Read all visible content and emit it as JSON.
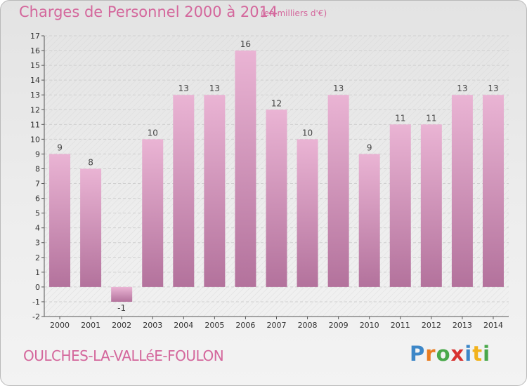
{
  "header": {
    "title": "Charges de Personnel 2000 à 2014",
    "unit": "(en milliers d'€)"
  },
  "footer": {
    "commune": "OULCHES-LA-VALLéE-FOULON",
    "logo_letters": [
      "P",
      "r",
      "o",
      "x",
      "i",
      "t",
      "i"
    ],
    "logo_colors": [
      "#3d87c8",
      "#e97c20",
      "#49a84a",
      "#d8312f",
      "#3d87c8",
      "#f2b21c",
      "#49a84a"
    ]
  },
  "colors": {
    "bar_top": "#eab4d4",
    "bar_bottom": "#b3729c",
    "accent": "#d4679c"
  },
  "chart_data": {
    "type": "bar",
    "title": "Charges de Personnel 2000 à 2014",
    "subtitle": "(en milliers d'€)",
    "xlabel": "",
    "ylabel": "",
    "categories": [
      "2000",
      "2001",
      "2002",
      "2003",
      "2004",
      "2005",
      "2006",
      "2007",
      "2008",
      "2009",
      "2010",
      "2011",
      "2012",
      "2013",
      "2014"
    ],
    "values": [
      9,
      8,
      -1,
      10,
      13,
      13,
      16,
      12,
      10,
      13,
      9,
      11,
      11,
      13,
      13
    ],
    "ylim": [
      -2,
      17
    ],
    "yticks": [
      "-2",
      "-1",
      "0",
      "1",
      "2",
      "3",
      "4",
      "5",
      "6",
      "7",
      "8",
      "9",
      "10",
      "11",
      "12",
      "13",
      "14",
      "15",
      "16",
      "17"
    ],
    "grid": true,
    "legend": "none"
  }
}
